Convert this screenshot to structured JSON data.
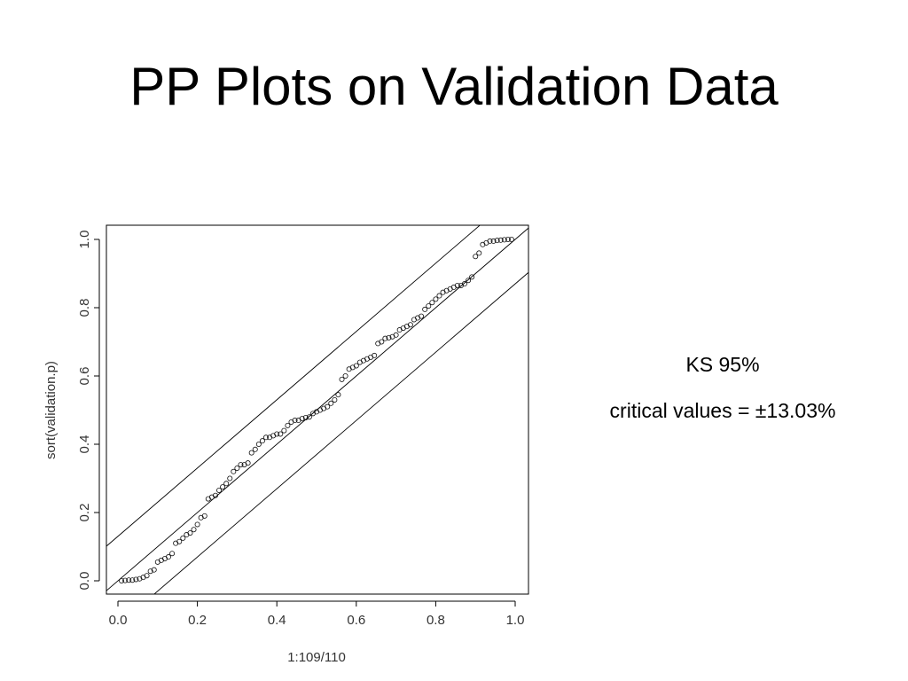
{
  "slide": {
    "title": "PP Plots on Validation Data",
    "ks_title": "KS 95%",
    "ks_text": "critical values = ±13.03%"
  },
  "chart_data": {
    "type": "scatter",
    "title": "",
    "xlabel": "1:109/110",
    "ylabel": "sort(validation.p)",
    "xlim": [
      0.0,
      1.0
    ],
    "ylim": [
      0.0,
      1.0
    ],
    "x_ticks": [
      0.0,
      0.2,
      0.4,
      0.6,
      0.8,
      1.0
    ],
    "y_ticks": [
      0.0,
      0.2,
      0.4,
      0.6,
      0.8,
      1.0
    ],
    "x_tick_labels": [
      "0.0",
      "0.2",
      "0.4",
      "0.6",
      "0.8",
      "1.0"
    ],
    "y_tick_labels": [
      "0.0",
      "0.2",
      "0.4",
      "0.6",
      "0.8",
      "1.0"
    ],
    "grid": false,
    "marker": "open-circle",
    "lines": [
      {
        "slope": 1,
        "intercept": 0.1303
      },
      {
        "slope": 1,
        "intercept": 0.0
      },
      {
        "slope": 1,
        "intercept": -0.1303
      }
    ],
    "series": [
      {
        "x_rule": "i/110 for i = 1..109",
        "y": [
          0.0,
          0.001,
          0.002,
          0.002,
          0.004,
          0.006,
          0.01,
          0.015,
          0.028,
          0.032,
          0.055,
          0.06,
          0.065,
          0.07,
          0.08,
          0.11,
          0.115,
          0.125,
          0.135,
          0.14,
          0.15,
          0.165,
          0.185,
          0.19,
          0.24,
          0.245,
          0.25,
          0.265,
          0.275,
          0.285,
          0.3,
          0.32,
          0.33,
          0.34,
          0.34,
          0.345,
          0.375,
          0.385,
          0.4,
          0.41,
          0.42,
          0.42,
          0.425,
          0.43,
          0.43,
          0.44,
          0.455,
          0.465,
          0.47,
          0.47,
          0.475,
          0.478,
          0.48,
          0.49,
          0.495,
          0.5,
          0.505,
          0.51,
          0.52,
          0.53,
          0.545,
          0.59,
          0.6,
          0.62,
          0.625,
          0.63,
          0.64,
          0.645,
          0.65,
          0.655,
          0.66,
          0.695,
          0.7,
          0.71,
          0.712,
          0.715,
          0.72,
          0.735,
          0.74,
          0.745,
          0.75,
          0.765,
          0.77,
          0.775,
          0.795,
          0.805,
          0.815,
          0.825,
          0.835,
          0.845,
          0.85,
          0.855,
          0.86,
          0.865,
          0.865,
          0.87,
          0.88,
          0.89,
          0.95,
          0.96,
          0.985,
          0.99,
          0.995,
          0.995,
          0.997,
          0.998,
          0.999,
          1.0,
          1.0
        ]
      }
    ]
  }
}
